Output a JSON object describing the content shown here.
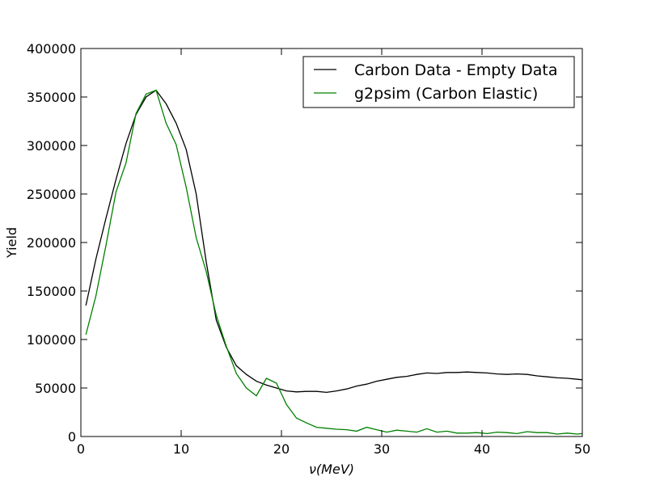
{
  "chart_data": {
    "type": "line",
    "title": "",
    "xlabel": "ν(MeV)",
    "ylabel": "Yield",
    "xlim": [
      0,
      50
    ],
    "ylim": [
      0,
      400000
    ],
    "xticks": [
      0,
      10,
      20,
      30,
      40,
      50
    ],
    "yticks": [
      0,
      50000,
      100000,
      150000,
      200000,
      250000,
      300000,
      350000,
      400000
    ],
    "grid": false,
    "legend_position": "top-right",
    "series": [
      {
        "name": "Carbon Data - Empty Data",
        "color": "#000000",
        "x": [
          0.5,
          1.5,
          2.5,
          3.5,
          4.5,
          5.5,
          6.5,
          7.5,
          8.5,
          9.5,
          10.5,
          11.5,
          12.5,
          13.5,
          14.5,
          15.5,
          16.5,
          17.5,
          18.5,
          19.5,
          20.5,
          21.5,
          22.5,
          23.5,
          24.5,
          25.5,
          26.5,
          27.5,
          28.5,
          29.5,
          30.5,
          31.5,
          32.5,
          33.5,
          34.5,
          35.5,
          36.5,
          37.5,
          38.5,
          39.5,
          40.5,
          41.5,
          42.5,
          43.5,
          44.5,
          45.5,
          46.5,
          47.5,
          48.5,
          49.5,
          50
        ],
        "y": [
          135000,
          183000,
          225000,
          265000,
          302000,
          332000,
          350000,
          357000,
          343000,
          323000,
          296000,
          250000,
          180000,
          120000,
          92000,
          73000,
          64000,
          57000,
          53000,
          50000,
          47000,
          46000,
          46500,
          46500,
          45500,
          47000,
          49000,
          52000,
          54000,
          57000,
          59000,
          61000,
          62000,
          64000,
          65500,
          65000,
          66000,
          66000,
          66500,
          66000,
          65500,
          64500,
          64000,
          64500,
          64000,
          62500,
          61500,
          60500,
          60000,
          59000,
          58500
        ]
      },
      {
        "name": "g2psim (Carbon Elastic)",
        "color": "#008000",
        "x": [
          0.5,
          1.5,
          2.5,
          3.5,
          4.5,
          5.5,
          6.5,
          7.5,
          8.5,
          9.5,
          10.5,
          11.5,
          12.5,
          13.5,
          14.5,
          15.5,
          16.5,
          17.5,
          18.5,
          19.5,
          20.5,
          21.5,
          22.5,
          23.5,
          24.5,
          25.5,
          26.5,
          27.5,
          28.5,
          29.5,
          30.5,
          31.5,
          32.5,
          33.5,
          34.5,
          35.5,
          36.5,
          37.5,
          38.5,
          39.5,
          40.5,
          41.5,
          42.5,
          43.5,
          44.5,
          45.5,
          46.5,
          47.5,
          48.5,
          49.5,
          50
        ],
        "y": [
          105000,
          145000,
          197000,
          252000,
          282000,
          333000,
          353000,
          357000,
          323000,
          301000,
          257000,
          205000,
          170000,
          125000,
          93000,
          65000,
          50000,
          42000,
          60000,
          55000,
          33000,
          19000,
          14000,
          9500,
          8500,
          7500,
          7000,
          5500,
          9500,
          7000,
          4500,
          6500,
          5500,
          4500,
          8000,
          4500,
          5500,
          3500,
          3500,
          4000,
          3000,
          4500,
          4000,
          3000,
          5000,
          4000,
          4000,
          2500,
          3500,
          2500,
          3000
        ]
      }
    ]
  }
}
